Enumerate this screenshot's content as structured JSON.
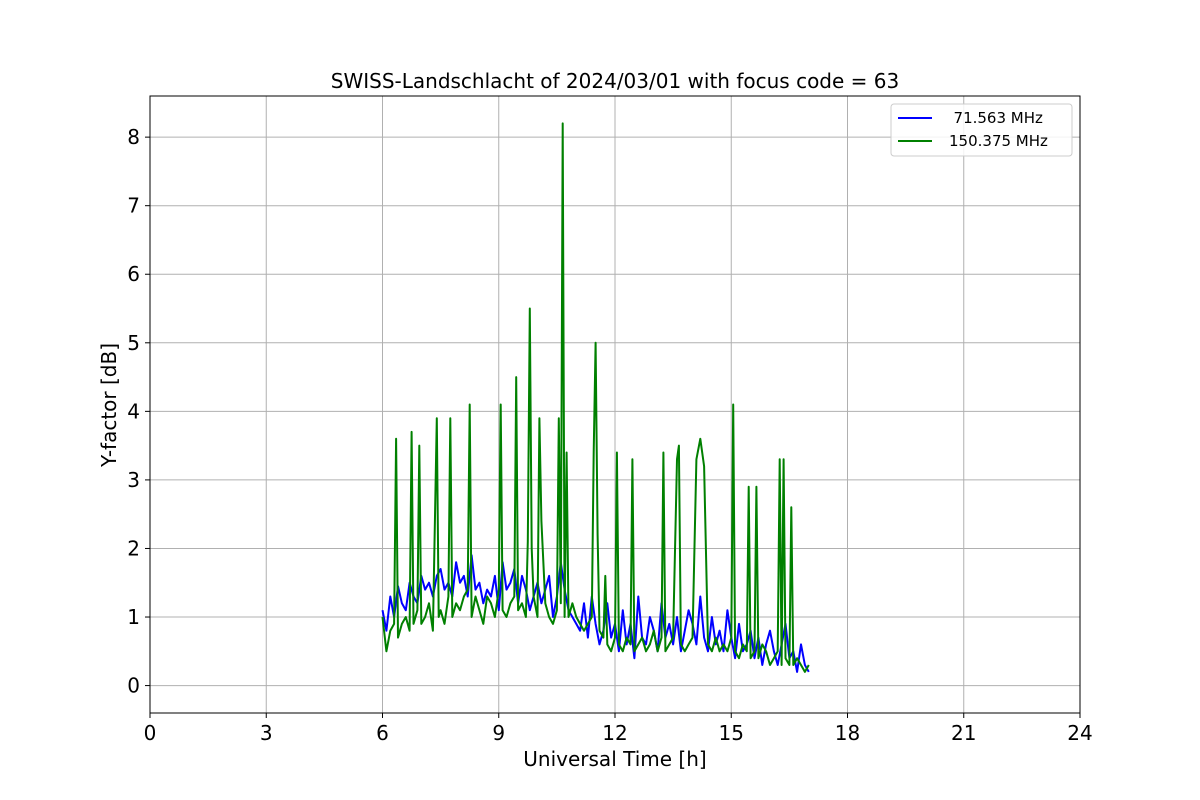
{
  "chart_data": {
    "type": "line",
    "title": "SWISS-Landschlacht of 2024/03/01 with focus code = 63",
    "xlabel": "Universal Time [h]",
    "ylabel": "Y-factor [dB]",
    "xlim": [
      0,
      24
    ],
    "ylim": [
      -0.4,
      8.6
    ],
    "xticks": [
      0,
      3,
      6,
      9,
      12,
      15,
      18,
      21,
      24
    ],
    "yticks": [
      0,
      1,
      2,
      3,
      4,
      5,
      6,
      7,
      8
    ],
    "grid": true,
    "legend": "top-right",
    "series": [
      {
        "name": "  71.563 MHz",
        "color": "#0000ff",
        "x": [
          6.0,
          6.1,
          6.2,
          6.3,
          6.4,
          6.5,
          6.6,
          6.7,
          6.8,
          6.9,
          7.0,
          7.1,
          7.2,
          7.3,
          7.4,
          7.5,
          7.6,
          7.7,
          7.8,
          7.9,
          8.0,
          8.1,
          8.2,
          8.3,
          8.4,
          8.5,
          8.6,
          8.7,
          8.8,
          8.9,
          9.0,
          9.1,
          9.2,
          9.3,
          9.4,
          9.5,
          9.6,
          9.7,
          9.8,
          9.9,
          10.0,
          10.1,
          10.2,
          10.3,
          10.4,
          10.5,
          10.6,
          10.7,
          10.8,
          10.9,
          11.0,
          11.1,
          11.2,
          11.3,
          11.4,
          11.5,
          11.6,
          11.7,
          11.8,
          11.9,
          12.0,
          12.1,
          12.2,
          12.3,
          12.4,
          12.5,
          12.6,
          12.7,
          12.8,
          12.9,
          13.0,
          13.1,
          13.2,
          13.3,
          13.4,
          13.5,
          13.6,
          13.7,
          13.8,
          13.9,
          14.0,
          14.1,
          14.2,
          14.3,
          14.4,
          14.5,
          14.6,
          14.7,
          14.8,
          14.9,
          15.0,
          15.1,
          15.2,
          15.3,
          15.4,
          15.5,
          15.6,
          15.7,
          15.8,
          15.9,
          16.0,
          16.1,
          16.2,
          16.3,
          16.4,
          16.5,
          16.6,
          16.7,
          16.8,
          16.9,
          17.0
        ],
        "y": [
          1.1,
          0.8,
          1.3,
          1.0,
          1.45,
          1.2,
          1.1,
          1.5,
          1.3,
          1.2,
          1.6,
          1.4,
          1.5,
          1.3,
          1.6,
          1.7,
          1.4,
          1.5,
          1.3,
          1.8,
          1.5,
          1.6,
          1.3,
          1.9,
          1.4,
          1.5,
          1.2,
          1.4,
          1.3,
          1.6,
          1.1,
          1.8,
          1.4,
          1.5,
          1.7,
          1.2,
          1.6,
          1.4,
          1.1,
          1.3,
          1.5,
          1.2,
          1.4,
          1.6,
          1.0,
          1.3,
          1.8,
          1.4,
          1.1,
          1.0,
          0.9,
          0.8,
          1.2,
          0.7,
          1.3,
          0.9,
          0.6,
          0.8,
          1.2,
          0.7,
          0.9,
          0.5,
          1.1,
          0.6,
          0.9,
          0.4,
          1.3,
          0.7,
          0.6,
          1.0,
          0.8,
          0.5,
          1.2,
          0.7,
          0.9,
          0.6,
          1.0,
          0.5,
          0.8,
          1.1,
          0.9,
          0.6,
          1.3,
          0.7,
          0.5,
          1.0,
          0.6,
          0.8,
          0.5,
          1.1,
          0.7,
          0.4,
          0.9,
          0.5,
          0.6,
          0.8,
          0.4,
          0.7,
          0.3,
          0.6,
          0.8,
          0.5,
          0.3,
          0.6,
          0.9,
          0.4,
          0.5,
          0.2,
          0.6,
          0.3,
          0.2
        ]
      },
      {
        "name": "150.375 MHz",
        "color": "#008000",
        "x": [
          6.0,
          6.1,
          6.2,
          6.3,
          6.35,
          6.4,
          6.5,
          6.6,
          6.7,
          6.75,
          6.8,
          6.9,
          6.95,
          7.0,
          7.1,
          7.2,
          7.3,
          7.4,
          7.45,
          7.5,
          7.6,
          7.7,
          7.75,
          7.8,
          7.9,
          8.0,
          8.1,
          8.2,
          8.25,
          8.3,
          8.4,
          8.5,
          8.6,
          8.7,
          8.8,
          8.9,
          9.0,
          9.05,
          9.1,
          9.2,
          9.3,
          9.4,
          9.45,
          9.5,
          9.6,
          9.7,
          9.75,
          9.8,
          9.85,
          9.9,
          10.0,
          10.05,
          10.1,
          10.2,
          10.3,
          10.4,
          10.5,
          10.55,
          10.6,
          10.65,
          10.7,
          10.75,
          10.8,
          10.9,
          11.0,
          11.1,
          11.2,
          11.3,
          11.4,
          11.45,
          11.5,
          11.55,
          11.6,
          11.7,
          11.75,
          11.8,
          11.9,
          12.0,
          12.05,
          12.1,
          12.2,
          12.3,
          12.4,
          12.45,
          12.5,
          12.6,
          12.7,
          12.8,
          12.9,
          13.0,
          13.1,
          13.2,
          13.25,
          13.3,
          13.4,
          13.5,
          13.6,
          13.65,
          13.7,
          13.8,
          13.9,
          14.0,
          14.1,
          14.2,
          14.3,
          14.4,
          14.5,
          14.6,
          14.7,
          14.8,
          14.9,
          15.0,
          15.05,
          15.1,
          15.2,
          15.3,
          15.4,
          15.45,
          15.5,
          15.6,
          15.65,
          15.7,
          15.8,
          15.9,
          16.0,
          16.1,
          16.2,
          16.25,
          16.3,
          16.35,
          16.4,
          16.5,
          16.55,
          16.6,
          16.7,
          16.8,
          16.9,
          17.0
        ],
        "y": [
          1.0,
          0.5,
          0.8,
          0.9,
          3.6,
          0.7,
          0.9,
          1.0,
          0.8,
          3.7,
          0.9,
          1.1,
          3.5,
          0.9,
          1.0,
          1.2,
          0.8,
          3.9,
          1.0,
          1.1,
          0.9,
          1.3,
          3.9,
          1.0,
          1.2,
          1.1,
          1.3,
          1.4,
          4.1,
          1.0,
          1.3,
          1.1,
          0.9,
          1.3,
          1.2,
          1.0,
          1.4,
          4.1,
          1.1,
          1.0,
          1.2,
          1.3,
          4.5,
          1.1,
          1.2,
          1.0,
          2.1,
          5.5,
          2.0,
          1.3,
          1.0,
          3.9,
          2.4,
          1.2,
          1.0,
          0.9,
          1.1,
          3.9,
          1.2,
          8.2,
          1.0,
          3.4,
          1.0,
          1.2,
          1.0,
          0.9,
          0.8,
          0.9,
          1.0,
          3.4,
          5.0,
          2.2,
          0.8,
          0.7,
          1.6,
          0.6,
          0.5,
          0.7,
          3.4,
          0.6,
          0.5,
          0.7,
          0.6,
          3.3,
          0.5,
          0.6,
          0.7,
          0.5,
          0.6,
          0.8,
          0.5,
          0.7,
          3.4,
          0.5,
          0.6,
          0.7,
          3.3,
          3.5,
          0.6,
          0.5,
          0.6,
          0.7,
          3.3,
          3.6,
          3.2,
          0.6,
          0.5,
          0.7,
          0.5,
          0.6,
          0.5,
          0.7,
          4.1,
          0.5,
          0.4,
          0.6,
          0.5,
          2.9,
          0.4,
          0.5,
          2.9,
          0.4,
          0.6,
          0.5,
          0.3,
          0.4,
          0.5,
          3.3,
          0.3,
          3.3,
          0.4,
          0.3,
          2.6,
          0.3,
          0.4,
          0.3,
          0.2,
          0.3
        ]
      }
    ]
  }
}
